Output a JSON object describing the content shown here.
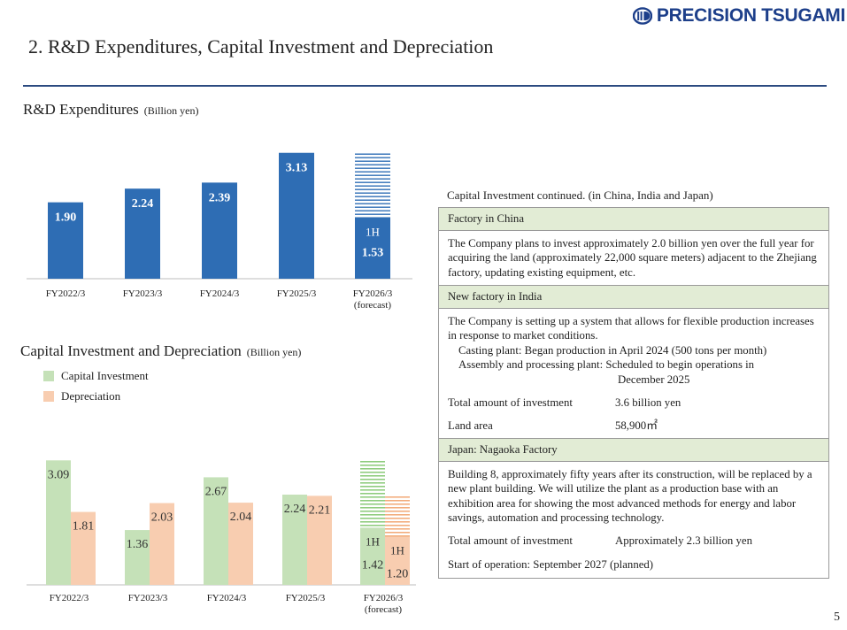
{
  "brand": {
    "name": "PRECISION TSUGAMI",
    "color": "#1d3f8a"
  },
  "page": {
    "title": "2. R&D Expenditures, Capital Investment and Depreciation",
    "number": "5"
  },
  "chart_data": [
    {
      "type": "bar",
      "title": "R&D Expenditures",
      "unit": "(Billion yen)",
      "categories": [
        "FY2022/3",
        "FY2023/3",
        "FY2024/3",
        "FY2025/3",
        "FY2026/3"
      ],
      "category_notes": [
        "",
        "",
        "",
        "",
        "(forecast)"
      ],
      "values": [
        1.9,
        2.24,
        2.39,
        3.13,
        1.53
      ],
      "value_labels": [
        "1.90",
        "2.24",
        "2.39",
        "3.13",
        "1.53"
      ],
      "forecast_full_year_outline": 3.13,
      "forecast_half_label": "1H",
      "color": "#2e6db4",
      "ylim": [
        0,
        3.3
      ]
    },
    {
      "type": "bar",
      "title": "Capital Investment and Depreciation",
      "unit": "(Billion yen)",
      "categories": [
        "FY2022/3",
        "FY2023/3",
        "FY2024/3",
        "FY2025/3",
        "FY2026/3"
      ],
      "category_notes": [
        "",
        "",
        "",
        "",
        "(forecast)"
      ],
      "series": [
        {
          "name": "Capital Investment",
          "values": [
            3.09,
            1.36,
            2.67,
            2.24,
            1.42
          ],
          "labels": [
            "3.09",
            "1.36",
            "2.67",
            "2.24",
            "1.42"
          ],
          "color": "#c5e1b8",
          "forecast_full_year_outline": 3.09
        },
        {
          "name": "Depreciation",
          "values": [
            1.81,
            2.03,
            2.04,
            2.21,
            1.2
          ],
          "labels": [
            "1.81",
            "2.03",
            "2.04",
            "2.21",
            "1.20"
          ],
          "color": "#f8cdb0",
          "forecast_full_year_outline": 2.21
        }
      ],
      "forecast_half_label": "1H",
      "ylim": [
        0,
        3.25
      ]
    }
  ],
  "panel": {
    "caption": "Capital Investment continued. (in China, India and Japan)",
    "china": {
      "heading": "Factory in China",
      "body": "The Company plans to invest approximately 2.0 billion yen over the full year for acquiring the land (approximately 22,000 square meters) adjacent to the Zhejiang factory, updating existing equipment, etc."
    },
    "india": {
      "heading": "New factory in India",
      "body": "The Company is setting up a system that allows for flexible production increases in response to market conditions.",
      "casting": "Casting plant: Began production in April 2024 (500 tons per month)",
      "assembly": "Assembly and processing plant: Scheduled to begin operations in",
      "assembly_date": "December 2025",
      "investment_label": "Total amount of investment",
      "investment_value": "3.6 billion yen",
      "land_label": "Land area",
      "land_value": "58,900㎡"
    },
    "japan": {
      "heading": "Japan: Nagaoka Factory",
      "body": "Building 8, approximately fifty years after its construction, will be replaced by a new plant building. We will utilize the plant as a production base with an exhibition area for showing the most advanced methods for energy and labor savings, automation and processing technology.",
      "investment_label": "Total amount of investment",
      "investment_value": "Approximately 2.3 billion yen",
      "start": "Start of operation: September 2027 (planned)"
    }
  }
}
